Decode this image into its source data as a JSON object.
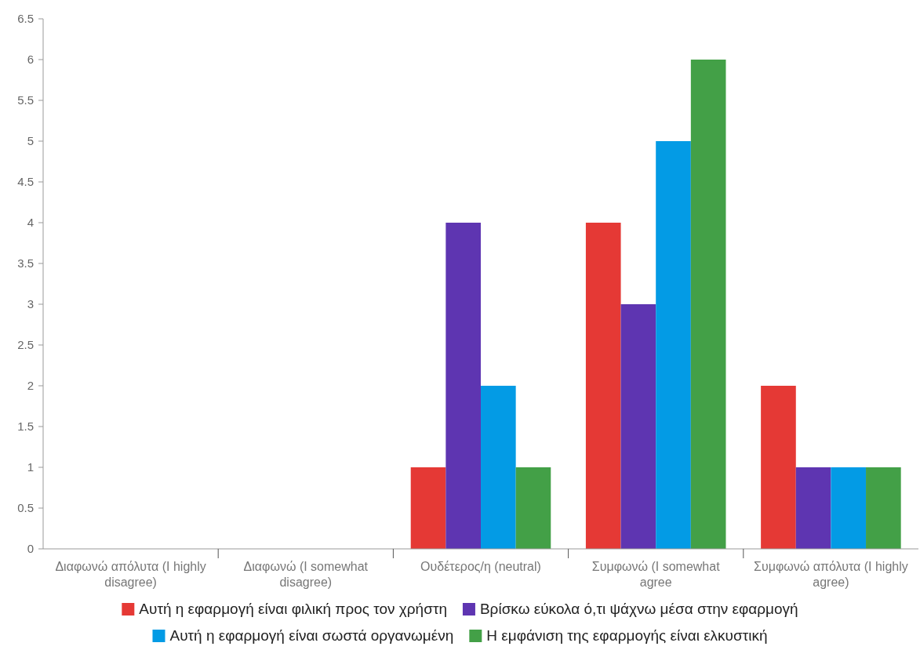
{
  "chart_data": {
    "type": "bar",
    "categories": [
      "Διαφωνώ απόλυτα (I highly disagree)",
      "Διαφωνώ (I somewhat disagree)",
      "Ουδέτερος/η (neutral)",
      "Συμφωνώ (I somewhat agree",
      "Συμφωνώ απόλυτα (I highly agree)"
    ],
    "series": [
      {
        "name": "Αυτή η εφαρμογή είναι φιλική προς τον χρήστη",
        "color": "#e53935",
        "values": [
          0,
          0,
          1,
          4,
          2
        ]
      },
      {
        "name": "Βρίσκω εύκολα ό,τι ψάχνω μέσα στην εφαρμογή",
        "color": "#5e35b1",
        "values": [
          0,
          0,
          4,
          3,
          1
        ]
      },
      {
        "name": "Αυτή η εφαρμογή είναι σωστά οργανωμένη",
        "color": "#039be5",
        "values": [
          0,
          0,
          2,
          5,
          1
        ]
      },
      {
        "name": "Η εμφάνιση της εφαρμογής είναι ελκυστική",
        "color": "#43a047",
        "values": [
          0,
          0,
          1,
          6,
          1
        ]
      }
    ],
    "ylim": [
      0,
      6.5
    ],
    "yticks": [
      0,
      0.5,
      1,
      1.5,
      2,
      2.5,
      3,
      3.5,
      4,
      4.5,
      5,
      5.5,
      6,
      6.5
    ],
    "grid": false,
    "legend": "bottom"
  }
}
